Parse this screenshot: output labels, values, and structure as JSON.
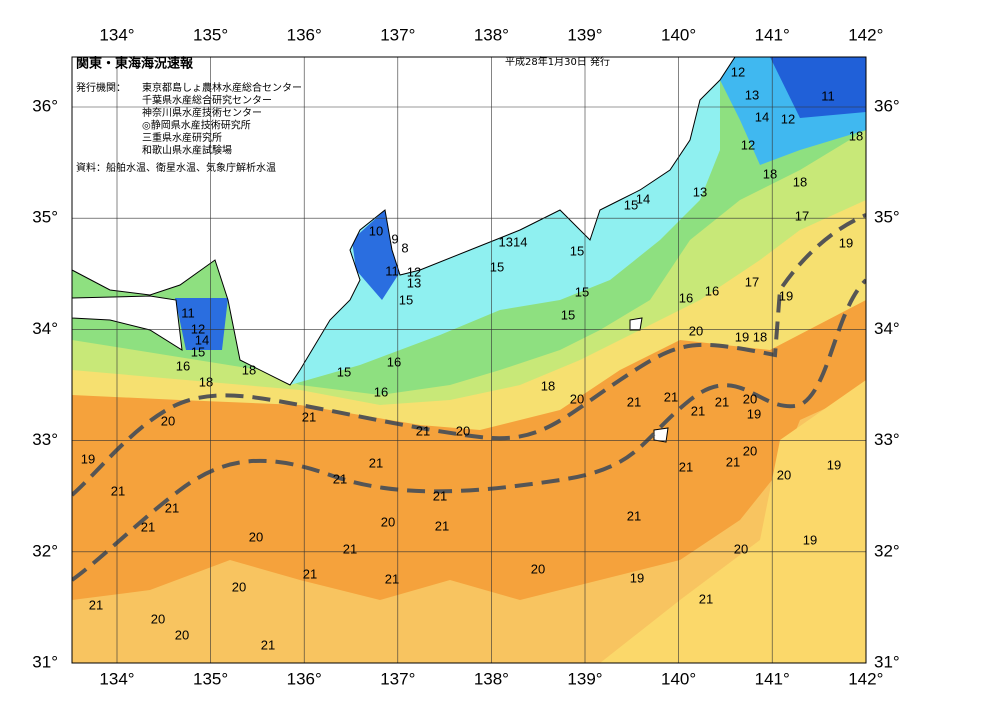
{
  "header": {
    "title": "関東・東海海況速報",
    "date": "平成28年1月30日 発行",
    "issuers_label": "発行機関：",
    "issuers": [
      "東京都島しょ農林水産総合センター",
      "千葉県水産総合研究センター",
      "神奈川県水産技術センター",
      "◎静岡県水産技術研究所",
      "三重県水産研究所",
      "和歌山県水産試験場"
    ],
    "source": "資料：船舶水温、衛星水温、気象庁解析水温"
  },
  "axes": {
    "longitude_labels": [
      "134°",
      "135°",
      "136°",
      "137°",
      "138°",
      "139°",
      "140°",
      "141°",
      "142°"
    ],
    "latitude_labels": [
      "36°",
      "35°",
      "34°",
      "33°",
      "32°",
      "31°"
    ]
  },
  "contour_labels": [
    "12",
    "13",
    "11",
    "14",
    "12",
    "18",
    "12",
    "18",
    "18",
    "13",
    "15",
    "14",
    "17",
    "19",
    "10",
    "9",
    "8",
    "1314",
    "15",
    "15",
    "11",
    "12",
    "13",
    "15",
    "16",
    "16",
    "17",
    "19",
    "15",
    "15",
    "11",
    "12",
    "14",
    "15",
    "16",
    "20",
    "19",
    "18",
    "16",
    "15",
    "16",
    "18",
    "18",
    "18",
    "20",
    "21",
    "21",
    "21",
    "21",
    "20",
    "19",
    "20",
    "21",
    "21",
    "20",
    "19",
    "21",
    "21",
    "21",
    "21",
    "20",
    "20",
    "19",
    "21",
    "21",
    "21",
    "21",
    "20",
    "21",
    "21",
    "20",
    "21",
    "20",
    "19",
    "21",
    "20",
    "21",
    "20",
    "19",
    "21",
    "21",
    "20",
    "20",
    "21"
  ]
}
